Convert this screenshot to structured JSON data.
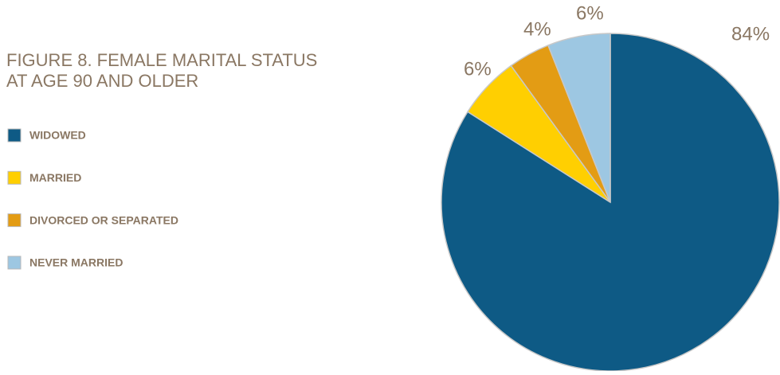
{
  "chart_data": {
    "type": "pie",
    "title": [
      "FIGURE 8. FEMALE MARITAL STATUS",
      "AT AGE 90 AND OLDER"
    ],
    "categories": [
      "WIDOWED",
      "MARRIED",
      "DIVORCED OR SEPARATED",
      "NEVER MARRIED"
    ],
    "values": [
      84,
      6,
      4,
      6
    ],
    "value_labels": [
      "84%",
      "6%",
      "4%",
      "6%"
    ],
    "colors": [
      "#0e5a85",
      "#ffcf01",
      "#e39c14",
      "#9dc7e2"
    ],
    "legend": "left"
  }
}
